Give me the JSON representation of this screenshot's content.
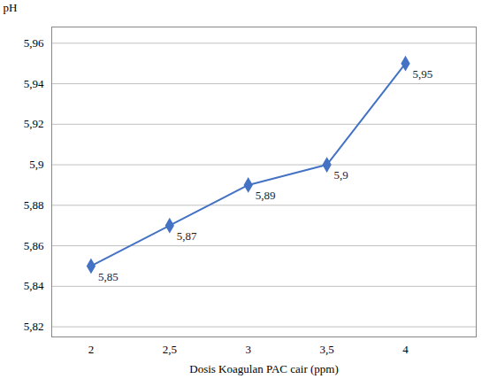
{
  "chart_data": {
    "type": "line",
    "x": [
      2,
      2.5,
      3,
      3.5,
      4
    ],
    "values": [
      5.85,
      5.87,
      5.89,
      5.9,
      5.95
    ],
    "value_labels": [
      "5,85",
      "5,87",
      "5,89",
      "5,9",
      "5,95"
    ],
    "data_labels": true,
    "xlabel": "Dosis Koagulan PAC cair (ppm)",
    "ylabel": "pH",
    "xlim": [
      1.75,
      4.45
    ],
    "ylim": [
      5.815,
      5.968
    ],
    "xticks": [
      2,
      {
        "value": 2.5,
        "label": "2,5"
      },
      3,
      {
        "value": 3.5,
        "label": "3,5"
      },
      4
    ],
    "yticks": [
      {
        "value": 5.82,
        "label": "5,82"
      },
      {
        "value": 5.84,
        "label": "5,84"
      },
      {
        "value": 5.86,
        "label": "5,86"
      },
      {
        "value": 5.88,
        "label": "5,88"
      },
      {
        "value": 5.9,
        "label": "5,9"
      },
      {
        "value": 5.92,
        "label": "5,92"
      },
      {
        "value": 5.94,
        "label": "5,94"
      },
      {
        "value": 5.96,
        "label": "5,96"
      }
    ],
    "color": "#4472C4",
    "marker": "diamond",
    "grid": "y"
  }
}
